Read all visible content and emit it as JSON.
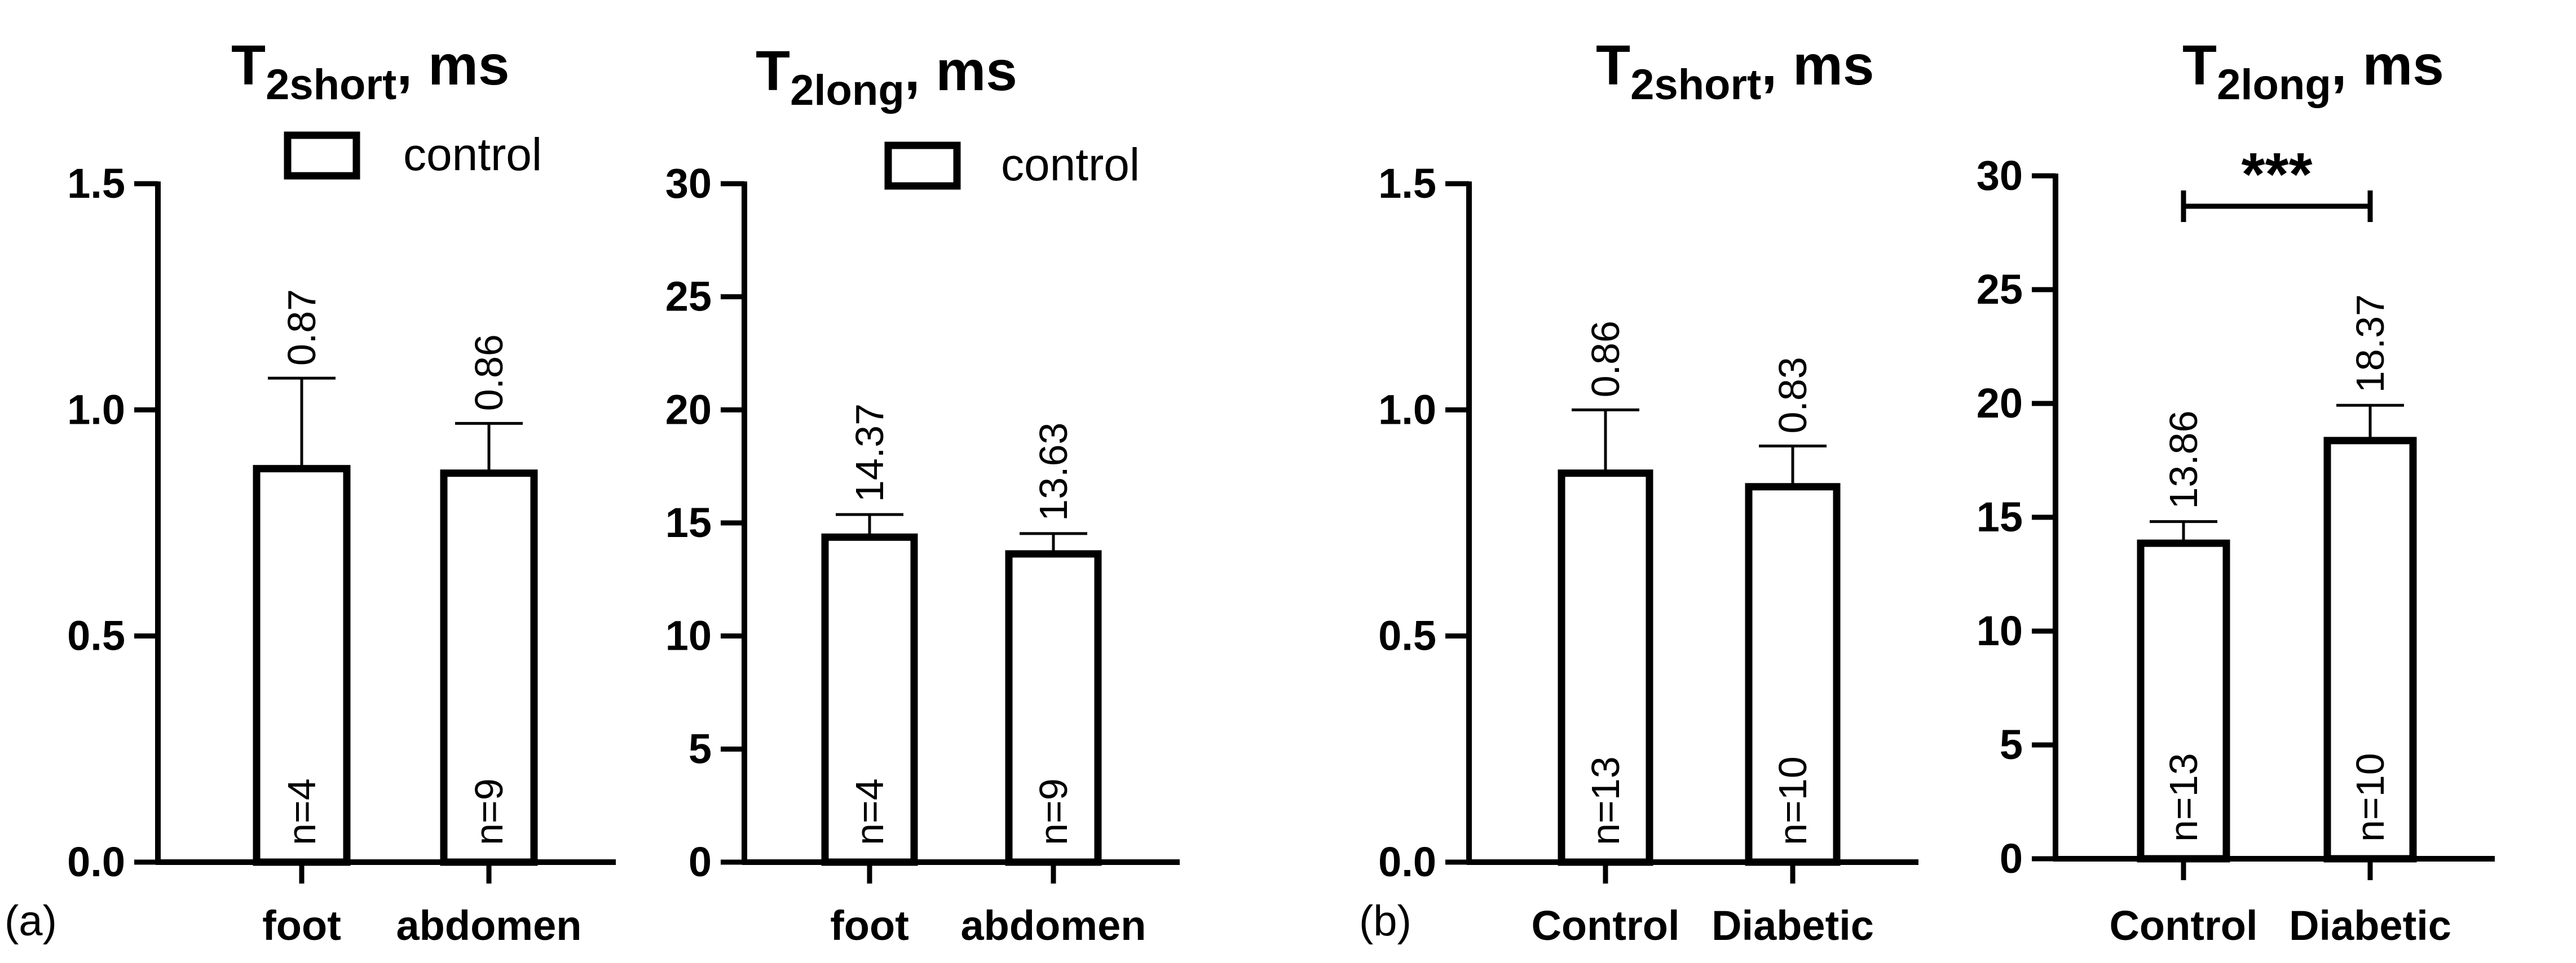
{
  "figure_labels": [
    "(a)",
    "(b)"
  ],
  "chart_data": [
    {
      "type": "bar",
      "panel": "(a)",
      "title_main": "T",
      "title_sub": "2short",
      "title_suffix": ", ms",
      "categories": [
        "foot",
        "abdomen"
      ],
      "values": [
        0.87,
        0.86
      ],
      "errors": [
        0.2,
        0.11
      ],
      "value_labels": [
        "0.87",
        "0.86"
      ],
      "n_labels": [
        "n=4",
        "n=9"
      ],
      "ylim": [
        0,
        1.5
      ],
      "yticks": [
        0.0,
        0.5,
        1.0,
        1.5
      ],
      "ytick_labels": [
        "0.0",
        "0.5",
        "1.0",
        "1.5"
      ],
      "legend": "control",
      "legend_placement": "top-right",
      "significance": ""
    },
    {
      "type": "bar",
      "panel": "(a)",
      "title_main": "T",
      "title_sub": "2long",
      "title_suffix": ", ms",
      "categories": [
        "foot",
        "abdomen"
      ],
      "values": [
        14.37,
        13.63
      ],
      "errors": [
        1.0,
        0.9
      ],
      "value_labels": [
        "14.37",
        "13.63"
      ],
      "n_labels": [
        "n=4",
        "n=9"
      ],
      "ylim": [
        0,
        30
      ],
      "yticks": [
        0,
        5,
        10,
        15,
        20,
        25,
        30
      ],
      "ytick_labels": [
        "0",
        "5",
        "10",
        "15",
        "20",
        "25",
        "30"
      ],
      "legend": "control",
      "legend_placement": "top-right",
      "significance": ""
    },
    {
      "type": "bar",
      "panel": "(b)",
      "title_main": "T",
      "title_sub": "2short",
      "title_suffix": ", ms",
      "categories": [
        "Control",
        "Diabetic"
      ],
      "values": [
        0.86,
        0.83
      ],
      "errors": [
        0.14,
        0.09
      ],
      "value_labels": [
        "0.86",
        "0.83"
      ],
      "n_labels": [
        "n=13",
        "n=10"
      ],
      "ylim": [
        0,
        1.5
      ],
      "yticks": [
        0.0,
        0.5,
        1.0,
        1.5
      ],
      "ytick_labels": [
        "0.0",
        "0.5",
        "1.0",
        "1.5"
      ],
      "legend": "",
      "significance": ""
    },
    {
      "type": "bar",
      "panel": "(b)",
      "title_main": "T",
      "title_sub": "2long",
      "title_suffix": ", ms",
      "categories": [
        "Control",
        "Diabetic"
      ],
      "values": [
        13.86,
        18.37
      ],
      "errors": [
        0.95,
        1.55
      ],
      "value_labels": [
        "13.86",
        "18.37"
      ],
      "n_labels": [
        "n=13",
        "n=10"
      ],
      "ylim": [
        0,
        30
      ],
      "yticks": [
        0,
        5,
        10,
        15,
        20,
        25,
        30
      ],
      "ytick_labels": [
        "0",
        "5",
        "10",
        "15",
        "20",
        "25",
        "30"
      ],
      "legend": "",
      "significance": "***"
    }
  ]
}
